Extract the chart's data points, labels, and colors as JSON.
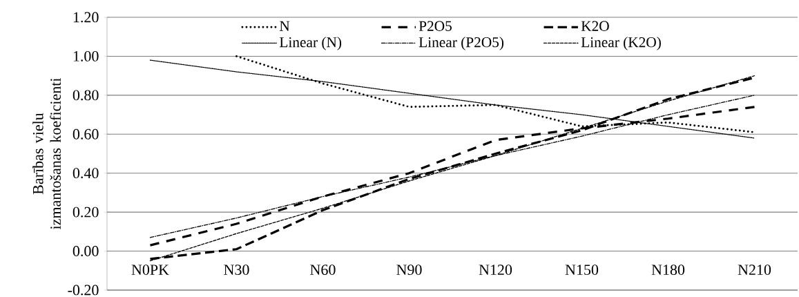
{
  "chart_data": {
    "type": "line",
    "ylabel": "Barības vielu izmantošanas koeficienti",
    "categories": [
      "N0PK",
      "N30",
      "N60",
      "N90",
      "N120",
      "N150",
      "N180",
      "N210"
    ],
    "series": [
      {
        "name": "N",
        "color": "#000000",
        "line_style": "dotted",
        "values": [
          null,
          1.0,
          0.86,
          0.74,
          0.75,
          0.64,
          0.66,
          0.61
        ]
      },
      {
        "name": "P2O5",
        "color": "#000000",
        "line_style": "dashed",
        "values": [
          0.03,
          0.14,
          0.28,
          0.4,
          0.57,
          0.63,
          0.68,
          0.74
        ]
      },
      {
        "name": "K2O",
        "color": "#000000",
        "line_style": "dashed",
        "values": [
          -0.04,
          0.01,
          0.21,
          0.37,
          0.5,
          0.62,
          0.78,
          0.89
        ]
      },
      {
        "name": "Linear (N)",
        "color": "#000000",
        "line_style": "dotted",
        "values": [
          0.98,
          0.92,
          0.87,
          0.81,
          0.75,
          0.7,
          0.64,
          0.58
        ]
      },
      {
        "name": "Linear (P2O5)",
        "color": "#000000",
        "line_style": "dashed",
        "values": [
          0.07,
          0.17,
          0.28,
          0.38,
          0.49,
          0.59,
          0.7,
          0.8
        ]
      },
      {
        "name": "Linear (K2O)",
        "color": "#000000",
        "line_style": "dashed",
        "values": [
          -0.05,
          0.09,
          0.22,
          0.36,
          0.49,
          0.63,
          0.77,
          0.9
        ]
      }
    ],
    "ylim": [
      -0.2,
      1.2
    ],
    "yticks": [
      {
        "value": -0.2,
        "label": "-0.20"
      },
      {
        "value": 0,
        "label": "0.00"
      },
      {
        "value": 0.2,
        "label": "0.20"
      },
      {
        "value": 0.4,
        "label": "0.40"
      },
      {
        "value": 0.6,
        "label": "0.60"
      },
      {
        "value": 0.8,
        "label": "0.80"
      },
      {
        "value": 1.0,
        "label": "1.00"
      },
      {
        "value": 1.2,
        "label": "1.20"
      }
    ],
    "grid": "y",
    "legend": "top"
  }
}
